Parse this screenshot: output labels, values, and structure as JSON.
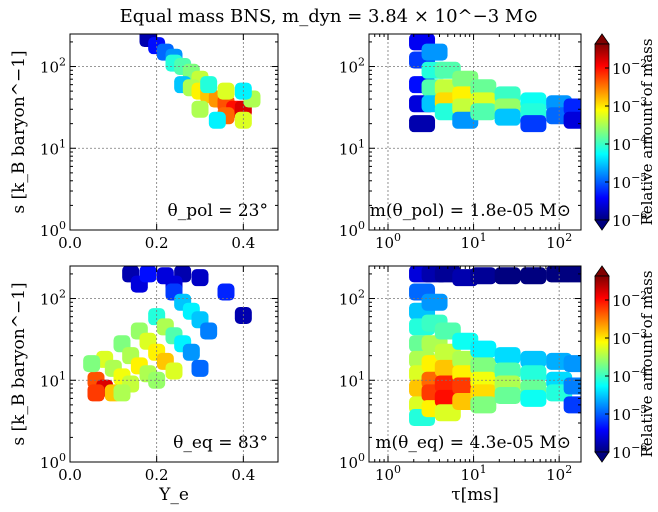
{
  "title": "Equal mass BNS, m_dyn = 3.84 × 10^−3 M⊙",
  "colors": {
    "scale": [
      "#00007f",
      "#0000ff",
      "#007fff",
      "#00ffff",
      "#7fff7f",
      "#ffff00",
      "#ff7f00",
      "#ff0000",
      "#7f0000"
    ]
  },
  "chart_data": [
    {
      "type": "heatmap",
      "panel": "top-left",
      "xlabel": "",
      "ylabel": "s [k_B baryon^−1]",
      "xscale": "linear",
      "yscale": "log",
      "xlim": [
        0.0,
        0.48
      ],
      "ylim": [
        1,
        250
      ],
      "xticks": [
        "0.0",
        "0.2",
        "0.4"
      ],
      "yticks": [
        "10^0",
        "10^1",
        "10^2"
      ],
      "grid": true,
      "annotation": "θ_pol = 23°",
      "cells": [
        [
          0.18,
          220,
          -5.8
        ],
        [
          0.2,
          180,
          -5.4
        ],
        [
          0.22,
          150,
          -5.0
        ],
        [
          0.24,
          130,
          -4.8
        ],
        [
          0.24,
          110,
          -4.2
        ],
        [
          0.26,
          100,
          -4.0
        ],
        [
          0.28,
          85,
          -3.8
        ],
        [
          0.3,
          70,
          -3.5
        ],
        [
          0.26,
          60,
          -4.6
        ],
        [
          0.28,
          55,
          -3.6
        ],
        [
          0.3,
          50,
          -3.2
        ],
        [
          0.32,
          45,
          -3.0
        ],
        [
          0.34,
          40,
          -2.8
        ],
        [
          0.36,
          35,
          -2.5
        ],
        [
          0.38,
          30,
          -2.2
        ],
        [
          0.4,
          30,
          -2.0
        ],
        [
          0.42,
          40,
          -3.6
        ],
        [
          0.36,
          25,
          -2.6
        ],
        [
          0.34,
          22,
          -4.4
        ],
        [
          0.3,
          30,
          -3.6
        ],
        [
          0.32,
          60,
          -4.2
        ],
        [
          0.4,
          50,
          -4.4
        ],
        [
          0.4,
          22,
          -3.4
        ],
        [
          0.36,
          50,
          -3.4
        ]
      ]
    },
    {
      "type": "heatmap",
      "panel": "top-right",
      "xlabel": "",
      "ylabel": "",
      "xscale": "log",
      "yscale": "log",
      "xlim": [
        0.6,
        180
      ],
      "ylim": [
        1,
        250
      ],
      "xticks": [
        "10^0",
        "10^1",
        "10^2"
      ],
      "yticks": [
        "10^0",
        "10^1",
        "10^2"
      ],
      "grid": true,
      "annotation": "m(θ_pol) = 1.8e-05 M⊙",
      "colorbar": {
        "label": "Relative amount of mass",
        "ticks": [
          "10^−2",
          "10^−3",
          "10^−4",
          "10^−5",
          "10^−6"
        ]
      },
      "cells": [
        [
          2.5,
          200,
          -5.5
        ],
        [
          2.5,
          120,
          -5.2
        ],
        [
          2.5,
          60,
          -5.4
        ],
        [
          2.5,
          35,
          -5.6
        ],
        [
          2.5,
          20,
          -5.8
        ],
        [
          3.5,
          150,
          -4.8
        ],
        [
          3.5,
          90,
          -4.2
        ],
        [
          3.5,
          55,
          -4.0
        ],
        [
          3.5,
          35,
          -4.6
        ],
        [
          5,
          90,
          -4.0
        ],
        [
          5,
          55,
          -3.5
        ],
        [
          5,
          38,
          -3.1
        ],
        [
          5,
          28,
          -4.2
        ],
        [
          8,
          70,
          -3.8
        ],
        [
          8,
          45,
          -3.2
        ],
        [
          8,
          32,
          -3.5
        ],
        [
          8,
          22,
          -4.8
        ],
        [
          13,
          55,
          -3.9
        ],
        [
          13,
          38,
          -3.4
        ],
        [
          13,
          28,
          -4.0
        ],
        [
          25,
          45,
          -4.1
        ],
        [
          25,
          32,
          -3.7
        ],
        [
          25,
          24,
          -4.6
        ],
        [
          50,
          38,
          -4.3
        ],
        [
          50,
          28,
          -4.2
        ],
        [
          50,
          20,
          -5.2
        ],
        [
          100,
          35,
          -4.8
        ],
        [
          100,
          25,
          -5.0
        ],
        [
          160,
          32,
          -5.3
        ],
        [
          160,
          22,
          -5.6
        ]
      ]
    },
    {
      "type": "heatmap",
      "panel": "bottom-left",
      "xlabel": "Y_e",
      "ylabel": "s [k_B baryon^−1]",
      "xscale": "linear",
      "yscale": "log",
      "xlim": [
        0.0,
        0.48
      ],
      "ylim": [
        1,
        250
      ],
      "xticks": [
        "0.0",
        "0.2",
        "0.4"
      ],
      "yticks": [
        "10^0",
        "10^1",
        "10^2"
      ],
      "grid": true,
      "annotation": "θ_eq = 83°",
      "cells": [
        [
          0.14,
          200,
          -5.8
        ],
        [
          0.16,
          150,
          -5.6
        ],
        [
          0.18,
          200,
          -5.4
        ],
        [
          0.22,
          190,
          -5.6
        ],
        [
          0.26,
          200,
          -5.8
        ],
        [
          0.24,
          150,
          -5.6
        ],
        [
          0.3,
          180,
          -5.7
        ],
        [
          0.36,
          120,
          -5.3
        ],
        [
          0.4,
          62,
          -5.8
        ],
        [
          0.24,
          120,
          -5.2
        ],
        [
          0.26,
          90,
          -4.6
        ],
        [
          0.28,
          70,
          -4.4
        ],
        [
          0.3,
          55,
          -4.6
        ],
        [
          0.32,
          40,
          -4.9
        ],
        [
          0.2,
          60,
          -4.2
        ],
        [
          0.22,
          45,
          -3.6
        ],
        [
          0.24,
          35,
          -4.0
        ],
        [
          0.26,
          28,
          -4.4
        ],
        [
          0.28,
          22,
          -4.8
        ],
        [
          0.16,
          40,
          -3.7
        ],
        [
          0.18,
          30,
          -3.4
        ],
        [
          0.2,
          22,
          -3.2
        ],
        [
          0.22,
          17,
          -3.0
        ],
        [
          0.24,
          13,
          -3.4
        ],
        [
          0.12,
          28,
          -3.8
        ],
        [
          0.14,
          20,
          -3.6
        ],
        [
          0.16,
          15,
          -3.2
        ],
        [
          0.18,
          12,
          -3.6
        ],
        [
          0.2,
          10,
          -3.7
        ],
        [
          0.08,
          18,
          -3.4
        ],
        [
          0.1,
          14,
          -3.6
        ],
        [
          0.12,
          11,
          -3.3
        ],
        [
          0.14,
          9,
          -3.5
        ],
        [
          0.06,
          10,
          -2.5
        ],
        [
          0.08,
          8,
          -2.0
        ],
        [
          0.06,
          7,
          -2.4
        ],
        [
          0.1,
          7,
          -3.0
        ],
        [
          0.12,
          7,
          -3.6
        ],
        [
          0.05,
          16,
          -3.8
        ],
        [
          0.3,
          14,
          -5.0
        ]
      ]
    },
    {
      "type": "heatmap",
      "panel": "bottom-right",
      "xlabel": "τ[ms]",
      "ylabel": "",
      "xscale": "log",
      "yscale": "log",
      "xlim": [
        0.6,
        180
      ],
      "ylim": [
        1,
        250
      ],
      "xticks": [
        "10^0",
        "10^1",
        "10^2"
      ],
      "yticks": [
        "10^0",
        "10^1",
        "10^2"
      ],
      "grid": true,
      "annotation": "m(θ_eq) = 4.3e-05 M⊙",
      "colorbar": {
        "label": "Relative amount of mass",
        "ticks": [
          "10^−2",
          "10^−3",
          "10^−4",
          "10^−5",
          "10^−6"
        ]
      },
      "cells": [
        [
          2.5,
          200,
          -5.6
        ],
        [
          3.5,
          200,
          -5.8
        ],
        [
          5,
          200,
          -5.9
        ],
        [
          8,
          180,
          -5.8
        ],
        [
          13,
          190,
          -5.9
        ],
        [
          25,
          190,
          -6.0
        ],
        [
          50,
          190,
          -6.0
        ],
        [
          100,
          200,
          -6.0
        ],
        [
          160,
          200,
          -6.0
        ],
        [
          2.5,
          120,
          -5.0
        ],
        [
          2.5,
          70,
          -4.6
        ],
        [
          2.5,
          45,
          -4.2
        ],
        [
          2.5,
          28,
          -3.9
        ],
        [
          2.5,
          18,
          -3.6
        ],
        [
          2.5,
          12,
          -3.4
        ],
        [
          2.5,
          8,
          -3.0
        ],
        [
          2.5,
          5,
          -3.4
        ],
        [
          2.5,
          3.5,
          -4.2
        ],
        [
          3.5,
          90,
          -4.8
        ],
        [
          3.5,
          50,
          -4.1
        ],
        [
          3.5,
          28,
          -3.6
        ],
        [
          3.5,
          16,
          -3.2
        ],
        [
          3.5,
          10,
          -2.6
        ],
        [
          3.5,
          7,
          -2.4
        ],
        [
          3.5,
          4.5,
          -3.2
        ],
        [
          5,
          40,
          -4.0
        ],
        [
          5,
          22,
          -3.5
        ],
        [
          5,
          14,
          -3.0
        ],
        [
          5,
          9,
          -2.3
        ],
        [
          5,
          6,
          -2.2
        ],
        [
          5,
          4,
          -3.4
        ],
        [
          8,
          30,
          -4.3
        ],
        [
          8,
          18,
          -3.6
        ],
        [
          8,
          12,
          -3.2
        ],
        [
          8,
          8.5,
          -2.4
        ],
        [
          8,
          5.5,
          -3.0
        ],
        [
          13,
          24,
          -4.4
        ],
        [
          13,
          15,
          -3.8
        ],
        [
          13,
          10,
          -3.3
        ],
        [
          13,
          7,
          -3.1
        ],
        [
          13,
          5,
          -3.8
        ],
        [
          25,
          20,
          -4.5
        ],
        [
          25,
          13,
          -4.0
        ],
        [
          25,
          9,
          -3.6
        ],
        [
          25,
          6.5,
          -3.9
        ],
        [
          50,
          18,
          -4.6
        ],
        [
          50,
          12,
          -4.2
        ],
        [
          50,
          8,
          -3.9
        ],
        [
          50,
          6,
          -4.3
        ],
        [
          100,
          17,
          -4.7
        ],
        [
          100,
          10,
          -4.5
        ],
        [
          100,
          7,
          -4.2
        ],
        [
          160,
          16,
          -4.8
        ],
        [
          160,
          8.5,
          -4.9
        ],
        [
          160,
          5,
          -5.2
        ]
      ]
    }
  ]
}
